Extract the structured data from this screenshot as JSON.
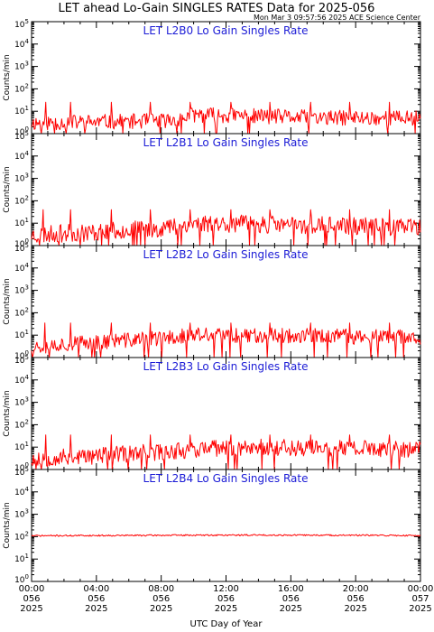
{
  "title": "LET ahead Lo-Gain SINGLES RATES Data for 2025-056",
  "timestamp": "Mon Mar  3 09:57:56 2025 ACE Science Center",
  "colors": {
    "series": "#ff0000",
    "panel_title": "#1c1cd6",
    "axes": "#000000",
    "background": "#ffffff"
  },
  "chart_data": [
    {
      "type": "line",
      "title": "LET L2B0 Lo Gain Singles Rate",
      "ylabel": "Counts/min",
      "yscale": "log",
      "ylim": [
        1,
        100000
      ],
      "yticks": [
        {
          "base": "10",
          "exp": "0"
        },
        {
          "base": "10",
          "exp": "1"
        },
        {
          "base": "10",
          "exp": "2"
        },
        {
          "base": "10",
          "exp": "3"
        },
        {
          "base": "10",
          "exp": "4"
        },
        {
          "base": "10",
          "exp": "5"
        }
      ],
      "xlim_hours": [
        0,
        24
      ],
      "series": [
        {
          "color": "#ff0000",
          "baseline": [
            [
              0,
              3
            ],
            [
              6,
              3.5
            ],
            [
              9,
              4
            ],
            [
              10,
              7
            ],
            [
              14,
              6
            ],
            [
              18,
              5
            ],
            [
              22,
              5
            ],
            [
              24,
              5
            ]
          ],
          "spike_hours": [
            0.9,
            2.4,
            4.9,
            7.3,
            9.8,
            12.3,
            14.7,
            17.2,
            19.6,
            22.1
          ],
          "spike_value": 25,
          "noise": 2.2,
          "seed": 11
        }
      ]
    },
    {
      "type": "line",
      "title": "LET L2B1 Lo Gain Singles Rate",
      "ylabel": "Counts/min",
      "yscale": "log",
      "ylim": [
        1,
        100000
      ],
      "yticks": [
        {
          "base": "10",
          "exp": "0"
        },
        {
          "base": "10",
          "exp": "1"
        },
        {
          "base": "10",
          "exp": "2"
        },
        {
          "base": "10",
          "exp": "3"
        },
        {
          "base": "10",
          "exp": "4"
        },
        {
          "base": "10",
          "exp": "5"
        }
      ],
      "xlim_hours": [
        0,
        24
      ],
      "series": [
        {
          "color": "#ff0000",
          "baseline": [
            [
              0,
              3
            ],
            [
              4,
              4
            ],
            [
              8,
              6
            ],
            [
              10,
              10
            ],
            [
              14,
              9
            ],
            [
              18,
              8
            ],
            [
              22,
              7
            ],
            [
              24,
              6
            ]
          ],
          "spike_hours": [
            0.7,
            2.4,
            4.9,
            7.3,
            9.8,
            12.3,
            14.7,
            17.2,
            19.6,
            22.1
          ],
          "spike_value": 40,
          "noise": 2.5,
          "seed": 23
        }
      ]
    },
    {
      "type": "line",
      "title": "LET L2B2 Lo Gain Singles Rate",
      "ylabel": "Counts/min",
      "yscale": "log",
      "ylim": [
        1,
        100000
      ],
      "yticks": [
        {
          "base": "10",
          "exp": "0"
        },
        {
          "base": "10",
          "exp": "1"
        },
        {
          "base": "10",
          "exp": "2"
        },
        {
          "base": "10",
          "exp": "3"
        },
        {
          "base": "10",
          "exp": "4"
        },
        {
          "base": "10",
          "exp": "5"
        }
      ],
      "xlim_hours": [
        0,
        24
      ],
      "series": [
        {
          "color": "#ff0000",
          "baseline": [
            [
              0,
              3
            ],
            [
              4,
              5
            ],
            [
              8,
              7
            ],
            [
              10,
              10
            ],
            [
              14,
              10
            ],
            [
              18,
              9
            ],
            [
              22,
              8
            ],
            [
              24,
              8
            ]
          ],
          "spike_hours": [
            0.8,
            2.4,
            4.9,
            7.3,
            9.8,
            12.3,
            14.7,
            17.2,
            19.6,
            22.1
          ],
          "spike_value": 35,
          "noise": 2.2,
          "seed": 37
        }
      ]
    },
    {
      "type": "line",
      "title": "LET L2B3 Lo Gain Singles Rate",
      "ylabel": "Counts/min",
      "yscale": "log",
      "ylim": [
        1,
        100000
      ],
      "yticks": [
        {
          "base": "10",
          "exp": "0"
        },
        {
          "base": "10",
          "exp": "1"
        },
        {
          "base": "10",
          "exp": "2"
        },
        {
          "base": "10",
          "exp": "3"
        },
        {
          "base": "10",
          "exp": "4"
        },
        {
          "base": "10",
          "exp": "5"
        }
      ],
      "xlim_hours": [
        0,
        24
      ],
      "series": [
        {
          "color": "#ff0000",
          "baseline": [
            [
              0,
              3
            ],
            [
              4,
              4
            ],
            [
              8,
              6
            ],
            [
              10,
              8
            ],
            [
              14,
              10
            ],
            [
              18,
              9
            ],
            [
              22,
              8
            ],
            [
              24,
              8
            ]
          ],
          "spike_hours": [
            0.9,
            2.4,
            4.9,
            7.3,
            9.8,
            12.3,
            14.7,
            17.2,
            19.6,
            22.1
          ],
          "spike_value": 35,
          "noise": 2.4,
          "seed": 53
        }
      ]
    },
    {
      "type": "line",
      "title": "LET L2B4 Lo Gain Singles Rate",
      "ylabel": "Counts/min",
      "yscale": "log",
      "ylim": [
        1,
        100000
      ],
      "yticks": [
        {
          "base": "10",
          "exp": "0"
        },
        {
          "base": "10",
          "exp": "1"
        },
        {
          "base": "10",
          "exp": "2"
        },
        {
          "base": "10",
          "exp": "3"
        },
        {
          "base": "10",
          "exp": "4"
        },
        {
          "base": "10",
          "exp": "5"
        }
      ],
      "xlim_hours": [
        0,
        24
      ],
      "xticks": [
        {
          "hour": 0,
          "time": "00:00",
          "doy": "056",
          "year": "2025"
        },
        {
          "hour": 4,
          "time": "04:00",
          "doy": "056",
          "year": "2025"
        },
        {
          "hour": 8,
          "time": "08:00",
          "doy": "056",
          "year": "2025"
        },
        {
          "hour": 12,
          "time": "12:00",
          "doy": "056",
          "year": "2025"
        },
        {
          "hour": 16,
          "time": "16:00",
          "doy": "056",
          "year": "2025"
        },
        {
          "hour": 20,
          "time": "20:00",
          "doy": "056",
          "year": "2025"
        },
        {
          "hour": 24,
          "time": "00:00",
          "doy": "057",
          "year": "2025"
        }
      ],
      "xlabel": "UTC Day of Year",
      "series": [
        {
          "color": "#ff0000",
          "baseline": [
            [
              0,
              110
            ],
            [
              8,
              115
            ],
            [
              14,
              118
            ],
            [
              20,
              115
            ],
            [
              24,
              112
            ]
          ],
          "spike_hours": [],
          "spike_value": 0,
          "noise": 1.08,
          "seed": 71
        }
      ]
    }
  ]
}
